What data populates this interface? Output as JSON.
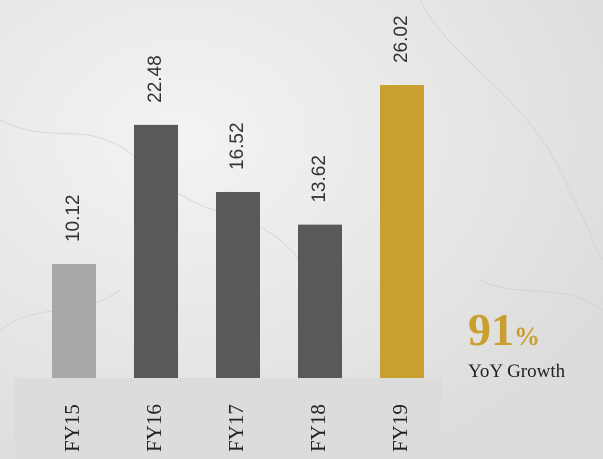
{
  "chart_data": {
    "type": "bar",
    "categories": [
      "FY15",
      "FY16",
      "FY17",
      "FY18",
      "FY19"
    ],
    "values": [
      10.12,
      22.48,
      16.52,
      13.62,
      26.02
    ],
    "colors": [
      "#a7a8aa",
      "#58595b",
      "#58595b",
      "#58595b",
      "#c9a030"
    ],
    "annotation": {
      "figure": "91",
      "unit": "%",
      "text": "YoY Growth"
    }
  }
}
